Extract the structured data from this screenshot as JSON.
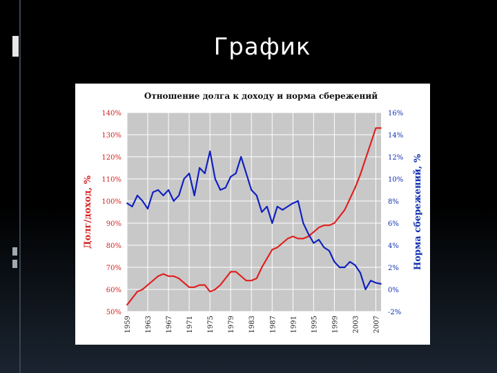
{
  "slide": {
    "title": "График"
  },
  "chart_data": {
    "type": "line",
    "title": "Отношение долга к доходу и норма сбережений",
    "ylabel_left": "Долг/доход, %",
    "ylabel_right": "Норма сбережений, %",
    "y_left": {
      "min": 50,
      "max": 140,
      "ticks": [
        140,
        130,
        120,
        110,
        100,
        90,
        80,
        70,
        60,
        50
      ],
      "tick_labels": [
        "140%",
        "130%",
        "120%",
        "110%",
        "100%",
        "90%",
        "80%",
        "70%",
        "60%",
        "50%"
      ]
    },
    "y_right": {
      "min": -2,
      "max": 16,
      "ticks": [
        16,
        14,
        12,
        10,
        8,
        6,
        4,
        2,
        0,
        -2
      ],
      "tick_labels": [
        "16%",
        "14%",
        "12%",
        "10%",
        "8%",
        "6%",
        "4%",
        "2%",
        "0%",
        "-2%"
      ]
    },
    "x": {
      "min": 1959,
      "max": 2008,
      "ticks": [
        1959,
        1963,
        1967,
        1971,
        1975,
        1979,
        1983,
        1987,
        1991,
        1995,
        1999,
        2003,
        2007
      ],
      "tick_labels": [
        "1959",
        "1963",
        "1967",
        "1971",
        "1975",
        "1979",
        "1983",
        "1987",
        "1991",
        "1995",
        "1999",
        "2003",
        "2007"
      ]
    },
    "grid": true,
    "colors": {
      "debt": "#e02020",
      "savings": "#1020c0",
      "plot_bg": "#c8c8c8",
      "grid": "#ffffff"
    },
    "series": [
      {
        "name": "Долг/доход",
        "axis": "left",
        "color": "#e02020",
        "x": [
          1959,
          1960,
          1961,
          1962,
          1963,
          1964,
          1965,
          1966,
          1967,
          1968,
          1969,
          1970,
          1971,
          1972,
          1973,
          1974,
          1975,
          1976,
          1977,
          1978,
          1979,
          1980,
          1981,
          1982,
          1983,
          1984,
          1985,
          1986,
          1987,
          1988,
          1989,
          1990,
          1991,
          1992,
          1993,
          1994,
          1995,
          1996,
          1997,
          1998,
          1999,
          2000,
          2001,
          2002,
          2003,
          2004,
          2005,
          2006,
          2007,
          2008
        ],
        "values": [
          53,
          56,
          59,
          60,
          62,
          64,
          66,
          67,
          66,
          66,
          65,
          63,
          61,
          61,
          62,
          62,
          59,
          60,
          62,
          65,
          68,
          68,
          66,
          64,
          64,
          65,
          70,
          74,
          78,
          79,
          81,
          83,
          84,
          83,
          83,
          84,
          86,
          88,
          89,
          89,
          90,
          93,
          96,
          101,
          106,
          112,
          119,
          126,
          133,
          133
        ]
      },
      {
        "name": "Норма сбережений",
        "axis": "right",
        "color": "#1020c0",
        "x": [
          1959,
          1960,
          1961,
          1962,
          1963,
          1964,
          1965,
          1966,
          1967,
          1968,
          1969,
          1970,
          1971,
          1972,
          1973,
          1974,
          1975,
          1976,
          1977,
          1978,
          1979,
          1980,
          1981,
          1982,
          1983,
          1984,
          1985,
          1986,
          1987,
          1988,
          1989,
          1990,
          1991,
          1992,
          1993,
          1994,
          1995,
          1996,
          1997,
          1998,
          1999,
          2000,
          2001,
          2002,
          2003,
          2004,
          2005,
          2006,
          2007,
          2008
        ],
        "values": [
          7.8,
          7.5,
          8.5,
          8.0,
          7.3,
          8.8,
          9.0,
          8.5,
          9.0,
          8.0,
          8.5,
          10.0,
          10.5,
          8.5,
          11.0,
          10.5,
          12.5,
          10.0,
          9.0,
          9.2,
          10.2,
          10.5,
          12.0,
          10.5,
          9.0,
          8.5,
          7.0,
          7.5,
          6.0,
          7.5,
          7.2,
          7.5,
          7.8,
          8.0,
          6.0,
          5.0,
          4.2,
          4.5,
          3.8,
          3.5,
          2.5,
          2.0,
          2.0,
          2.5,
          2.2,
          1.5,
          0.0,
          0.8,
          0.6,
          0.5
        ]
      }
    ]
  }
}
